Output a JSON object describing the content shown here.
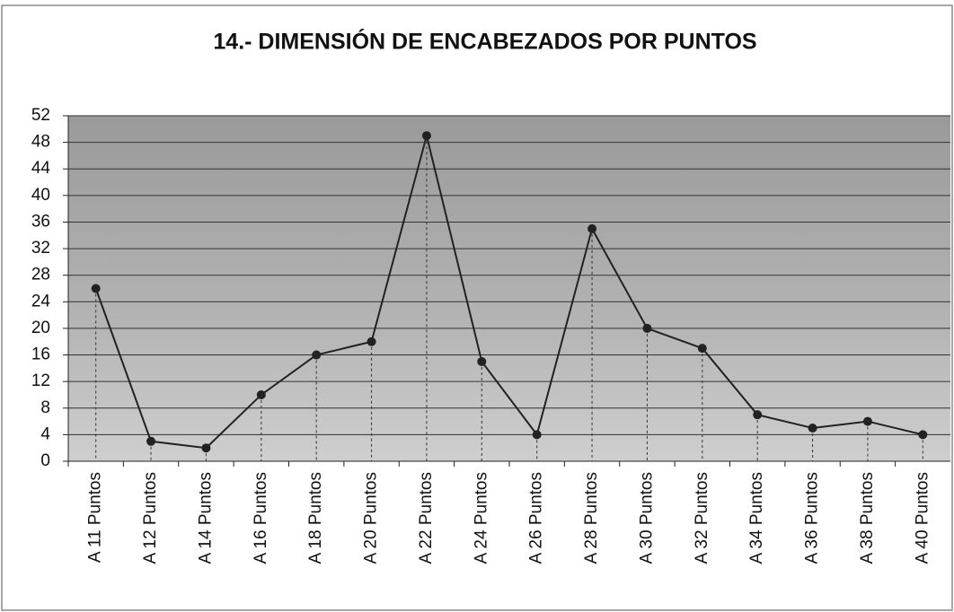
{
  "chart_data": {
    "type": "line",
    "title": "14.- DIMENSIÓN DE ENCABEZADOS POR PUNTOS",
    "categories": [
      "A 11 Puntos",
      "A 12 Puntos",
      "A 14 Puntos",
      "A 16 Puntos",
      "A 18 Puntos",
      "A 20 Puntos",
      "A 22 Puntos",
      "A 24 Puntos",
      "A 26 Puntos",
      "A 28 Puntos",
      "A 30 Puntos",
      "A 32 Puntos",
      "A 34 Puntos",
      "A 36 Puntos",
      "A 38 Puntos",
      "A 40 Puntos"
    ],
    "values": [
      26,
      3,
      2,
      10,
      16,
      18,
      49,
      15,
      4,
      35,
      20,
      17,
      7,
      5,
      6,
      4
    ],
    "color": "#222222",
    "ylim": [
      0,
      52
    ],
    "yticks": [
      0,
      4,
      8,
      12,
      16,
      20,
      24,
      28,
      32,
      36,
      40,
      44,
      48,
      52
    ],
    "grid": true
  }
}
